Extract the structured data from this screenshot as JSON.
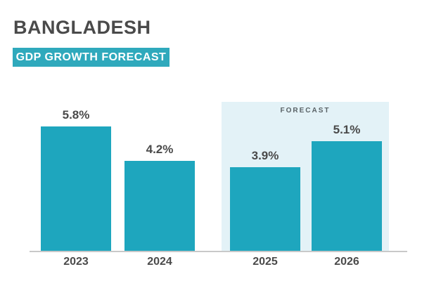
{
  "header": {
    "title": "BANGLADESH",
    "subtitle": "GDP GROWTH FORECAST"
  },
  "colors": {
    "bar_teal": "#1EA6BE",
    "band_teal": "#2FA9BC",
    "forecast_bg": "#E3F2F7",
    "text_dark": "#4A4A4A",
    "axis_gray": "#C9C9C9",
    "forecast_text": "#5A6266"
  },
  "chart_data": {
    "type": "bar",
    "title": "BANGLADESH GDP GROWTH FORECAST",
    "categories": [
      "2023",
      "2024",
      "2025",
      "2026"
    ],
    "values": [
      5.8,
      4.2,
      3.9,
      5.1
    ],
    "value_labels": [
      "5.8%",
      "4.2%",
      "3.9%",
      "5.1%"
    ],
    "unit": "percent",
    "ylim": [
      0,
      6.2
    ],
    "grid": false,
    "legend": false,
    "y_axis_shown": false,
    "annotation": "FORECAST",
    "forecast_categories": [
      "2025",
      "2026"
    ]
  }
}
